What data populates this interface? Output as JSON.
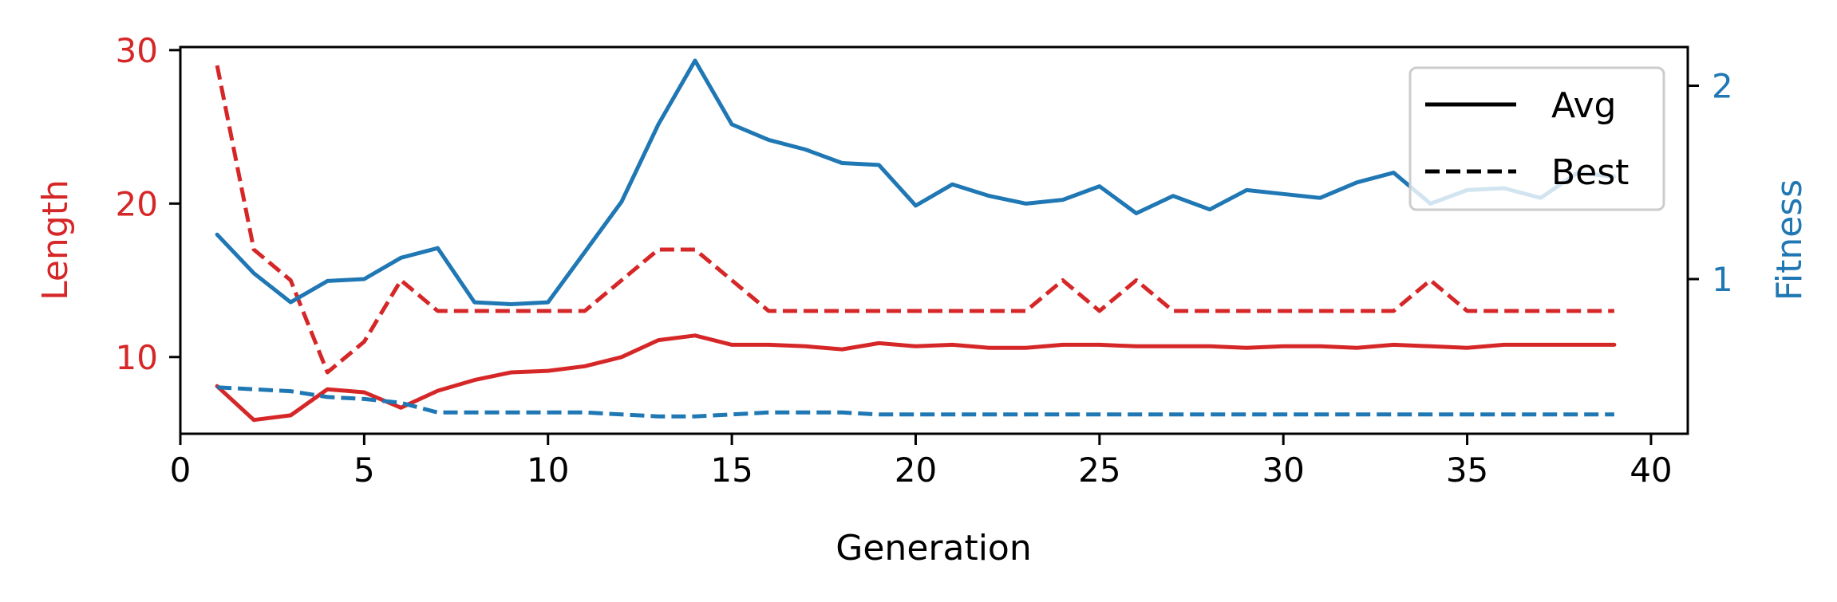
{
  "chart_data": {
    "type": "line",
    "title": "",
    "xlabel": "Generation",
    "ylabel_left": "Length",
    "ylabel_right": "Fitness",
    "xlim": [
      0,
      41
    ],
    "ylim_left": [
      5,
      30.2
    ],
    "ylim_right": [
      0.2,
      2.2
    ],
    "xticks": [
      0,
      5,
      10,
      15,
      20,
      25,
      30,
      35,
      40
    ],
    "yticks_left": [
      10,
      20,
      30
    ],
    "yticks_right": [
      1,
      2
    ],
    "grid": false,
    "legend_position": "top-right",
    "legend": [
      {
        "label": "Avg",
        "style": "solid"
      },
      {
        "label": "Best",
        "style": "dashed"
      }
    ],
    "colors": {
      "length": "#d62728",
      "fitness": "#1f77b4",
      "axis": "#000000"
    },
    "x": [
      1,
      2,
      3,
      4,
      5,
      6,
      7,
      8,
      9,
      10,
      11,
      12,
      13,
      14,
      15,
      16,
      17,
      18,
      19,
      20,
      21,
      22,
      23,
      24,
      25,
      26,
      27,
      28,
      29,
      30,
      31,
      32,
      33,
      34,
      35,
      36,
      37,
      38,
      39
    ],
    "series": [
      {
        "name": "Avg",
        "metric": "Length",
        "axis": "left",
        "style": "solid",
        "color": "#d62728",
        "values": [
          8.1,
          5.9,
          6.2,
          7.9,
          7.7,
          6.7,
          7.8,
          8.5,
          9.0,
          9.1,
          9.4,
          10.0,
          11.1,
          11.4,
          10.8,
          10.8,
          10.7,
          10.5,
          10.9,
          10.7,
          10.8,
          10.6,
          10.6,
          10.8,
          10.8,
          10.7,
          10.7,
          10.7,
          10.6,
          10.7,
          10.7,
          10.6,
          10.8,
          10.7,
          10.6,
          10.8,
          10.8,
          10.8,
          10.8
        ]
      },
      {
        "name": "Best",
        "metric": "Length",
        "axis": "left",
        "style": "dashed",
        "color": "#d62728",
        "values": [
          29,
          17,
          15,
          9,
          11,
          15,
          13,
          13,
          13,
          13,
          13,
          15,
          17,
          17,
          15,
          13,
          13,
          13,
          13,
          13,
          13,
          13,
          13,
          15,
          13,
          15,
          13,
          13,
          13,
          13,
          13,
          13,
          13,
          15,
          13,
          13,
          13,
          13,
          13
        ]
      },
      {
        "name": "Avg",
        "metric": "Fitness",
        "axis": "right",
        "style": "solid",
        "color": "#1f77b4",
        "values": [
          1.23,
          1.03,
          0.88,
          0.99,
          1.0,
          1.11,
          1.16,
          0.88,
          0.87,
          0.88,
          1.14,
          1.4,
          1.8,
          2.13,
          1.8,
          1.72,
          1.67,
          1.6,
          1.59,
          1.38,
          1.49,
          1.43,
          1.39,
          1.41,
          1.48,
          1.34,
          1.43,
          1.36,
          1.46,
          1.44,
          1.42,
          1.5,
          1.55,
          1.39,
          1.46,
          1.47,
          1.42,
          1.55,
          1.53
        ]
      },
      {
        "name": "Best",
        "metric": "Fitness",
        "axis": "right",
        "style": "dashed",
        "color": "#1f77b4",
        "values": [
          0.44,
          0.43,
          0.42,
          0.39,
          0.38,
          0.36,
          0.31,
          0.31,
          0.31,
          0.31,
          0.31,
          0.3,
          0.29,
          0.29,
          0.3,
          0.31,
          0.31,
          0.31,
          0.3,
          0.3,
          0.3,
          0.3,
          0.3,
          0.3,
          0.3,
          0.3,
          0.3,
          0.3,
          0.3,
          0.3,
          0.3,
          0.3,
          0.3,
          0.3,
          0.3,
          0.3,
          0.3,
          0.3,
          0.3
        ]
      }
    ]
  }
}
